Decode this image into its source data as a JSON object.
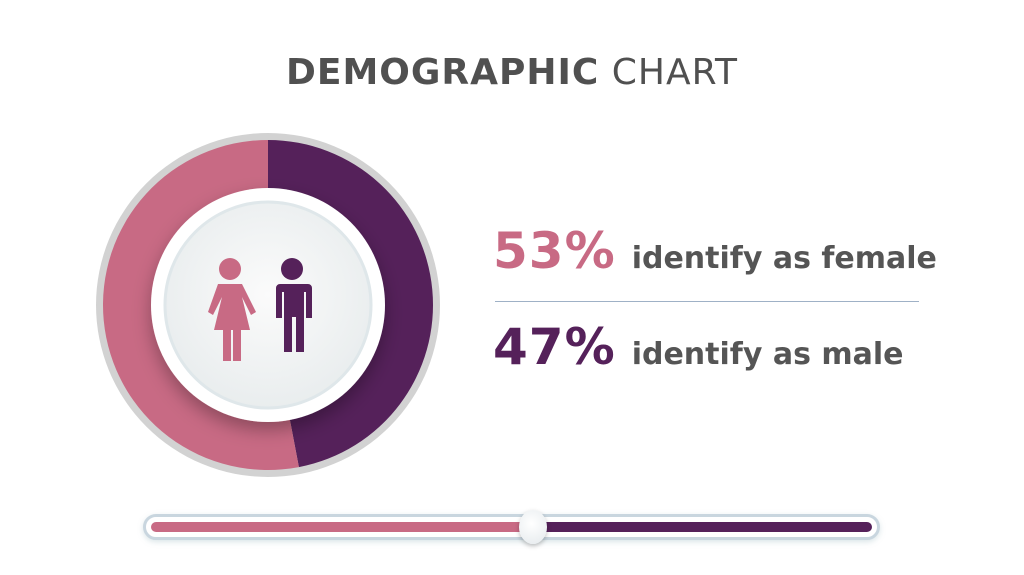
{
  "title": {
    "bold": "DEMOGRAPHIC",
    "light": "CHART"
  },
  "colors": {
    "female": "#c86a84",
    "male": "#55215a",
    "ring": "#d0d0d0",
    "text": "#555555"
  },
  "icons": [
    "female-person-icon",
    "male-person-icon"
  ],
  "chart_data": {
    "type": "pie",
    "style": "donut",
    "categories": [
      "female",
      "male"
    ],
    "values": [
      53,
      47
    ],
    "unit": "%",
    "labels": [
      {
        "value": "53%",
        "text": "identify as female"
      },
      {
        "value": "47%",
        "text": "identify as male"
      }
    ],
    "slider": {
      "value_percent": 53
    }
  }
}
